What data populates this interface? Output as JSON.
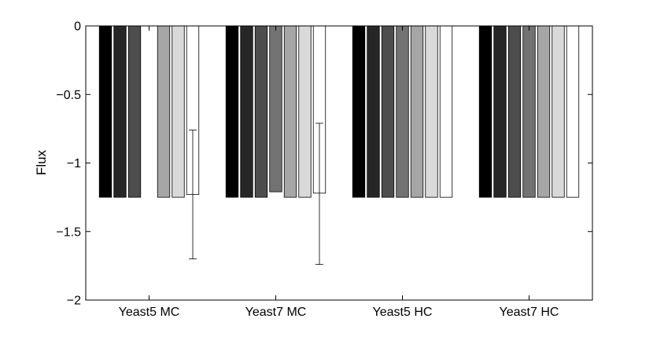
{
  "chart_data": {
    "type": "bar",
    "title": "",
    "xlabel": "",
    "ylabel": "Flux",
    "ylim": [
      -2,
      0
    ],
    "yticks": [
      0,
      -0.5,
      -1,
      -1.5,
      -2
    ],
    "ytick_labels": [
      "0",
      "−0.5",
      "−1",
      "−1.5",
      "−2"
    ],
    "categories": [
      "Yeast5 MC",
      "Yeast7 MC",
      "Yeast5 HC",
      "Yeast7 HC"
    ],
    "grid": false,
    "legend": "none",
    "bar_colors": [
      "#000000",
      "#262626",
      "#4d4d4d",
      "#737373",
      "#a6a6a6",
      "#d9d9d9",
      "#ffffff"
    ],
    "series": [
      {
        "values": [
          -1.25,
          -1.25,
          -1.25,
          -1.25
        ]
      },
      {
        "values": [
          -1.25,
          -1.25,
          -1.25,
          -1.25
        ]
      },
      {
        "values": [
          -1.25,
          -1.25,
          -1.25,
          -1.25
        ]
      },
      {
        "values": [
          0,
          -1.21,
          -1.25,
          -1.25
        ]
      },
      {
        "values": [
          -1.25,
          -1.25,
          -1.25,
          -1.25
        ]
      },
      {
        "values": [
          -1.25,
          -1.25,
          -1.25,
          -1.25
        ]
      },
      {
        "values": [
          -1.23,
          -1.22,
          -1.25,
          -1.25
        ]
      }
    ],
    "error_bars": [
      {
        "category_index": 0,
        "series_index": 6,
        "low": -1.7,
        "high": -0.76
      },
      {
        "category_index": 1,
        "series_index": 6,
        "low": -1.74,
        "high": -0.71
      }
    ]
  }
}
